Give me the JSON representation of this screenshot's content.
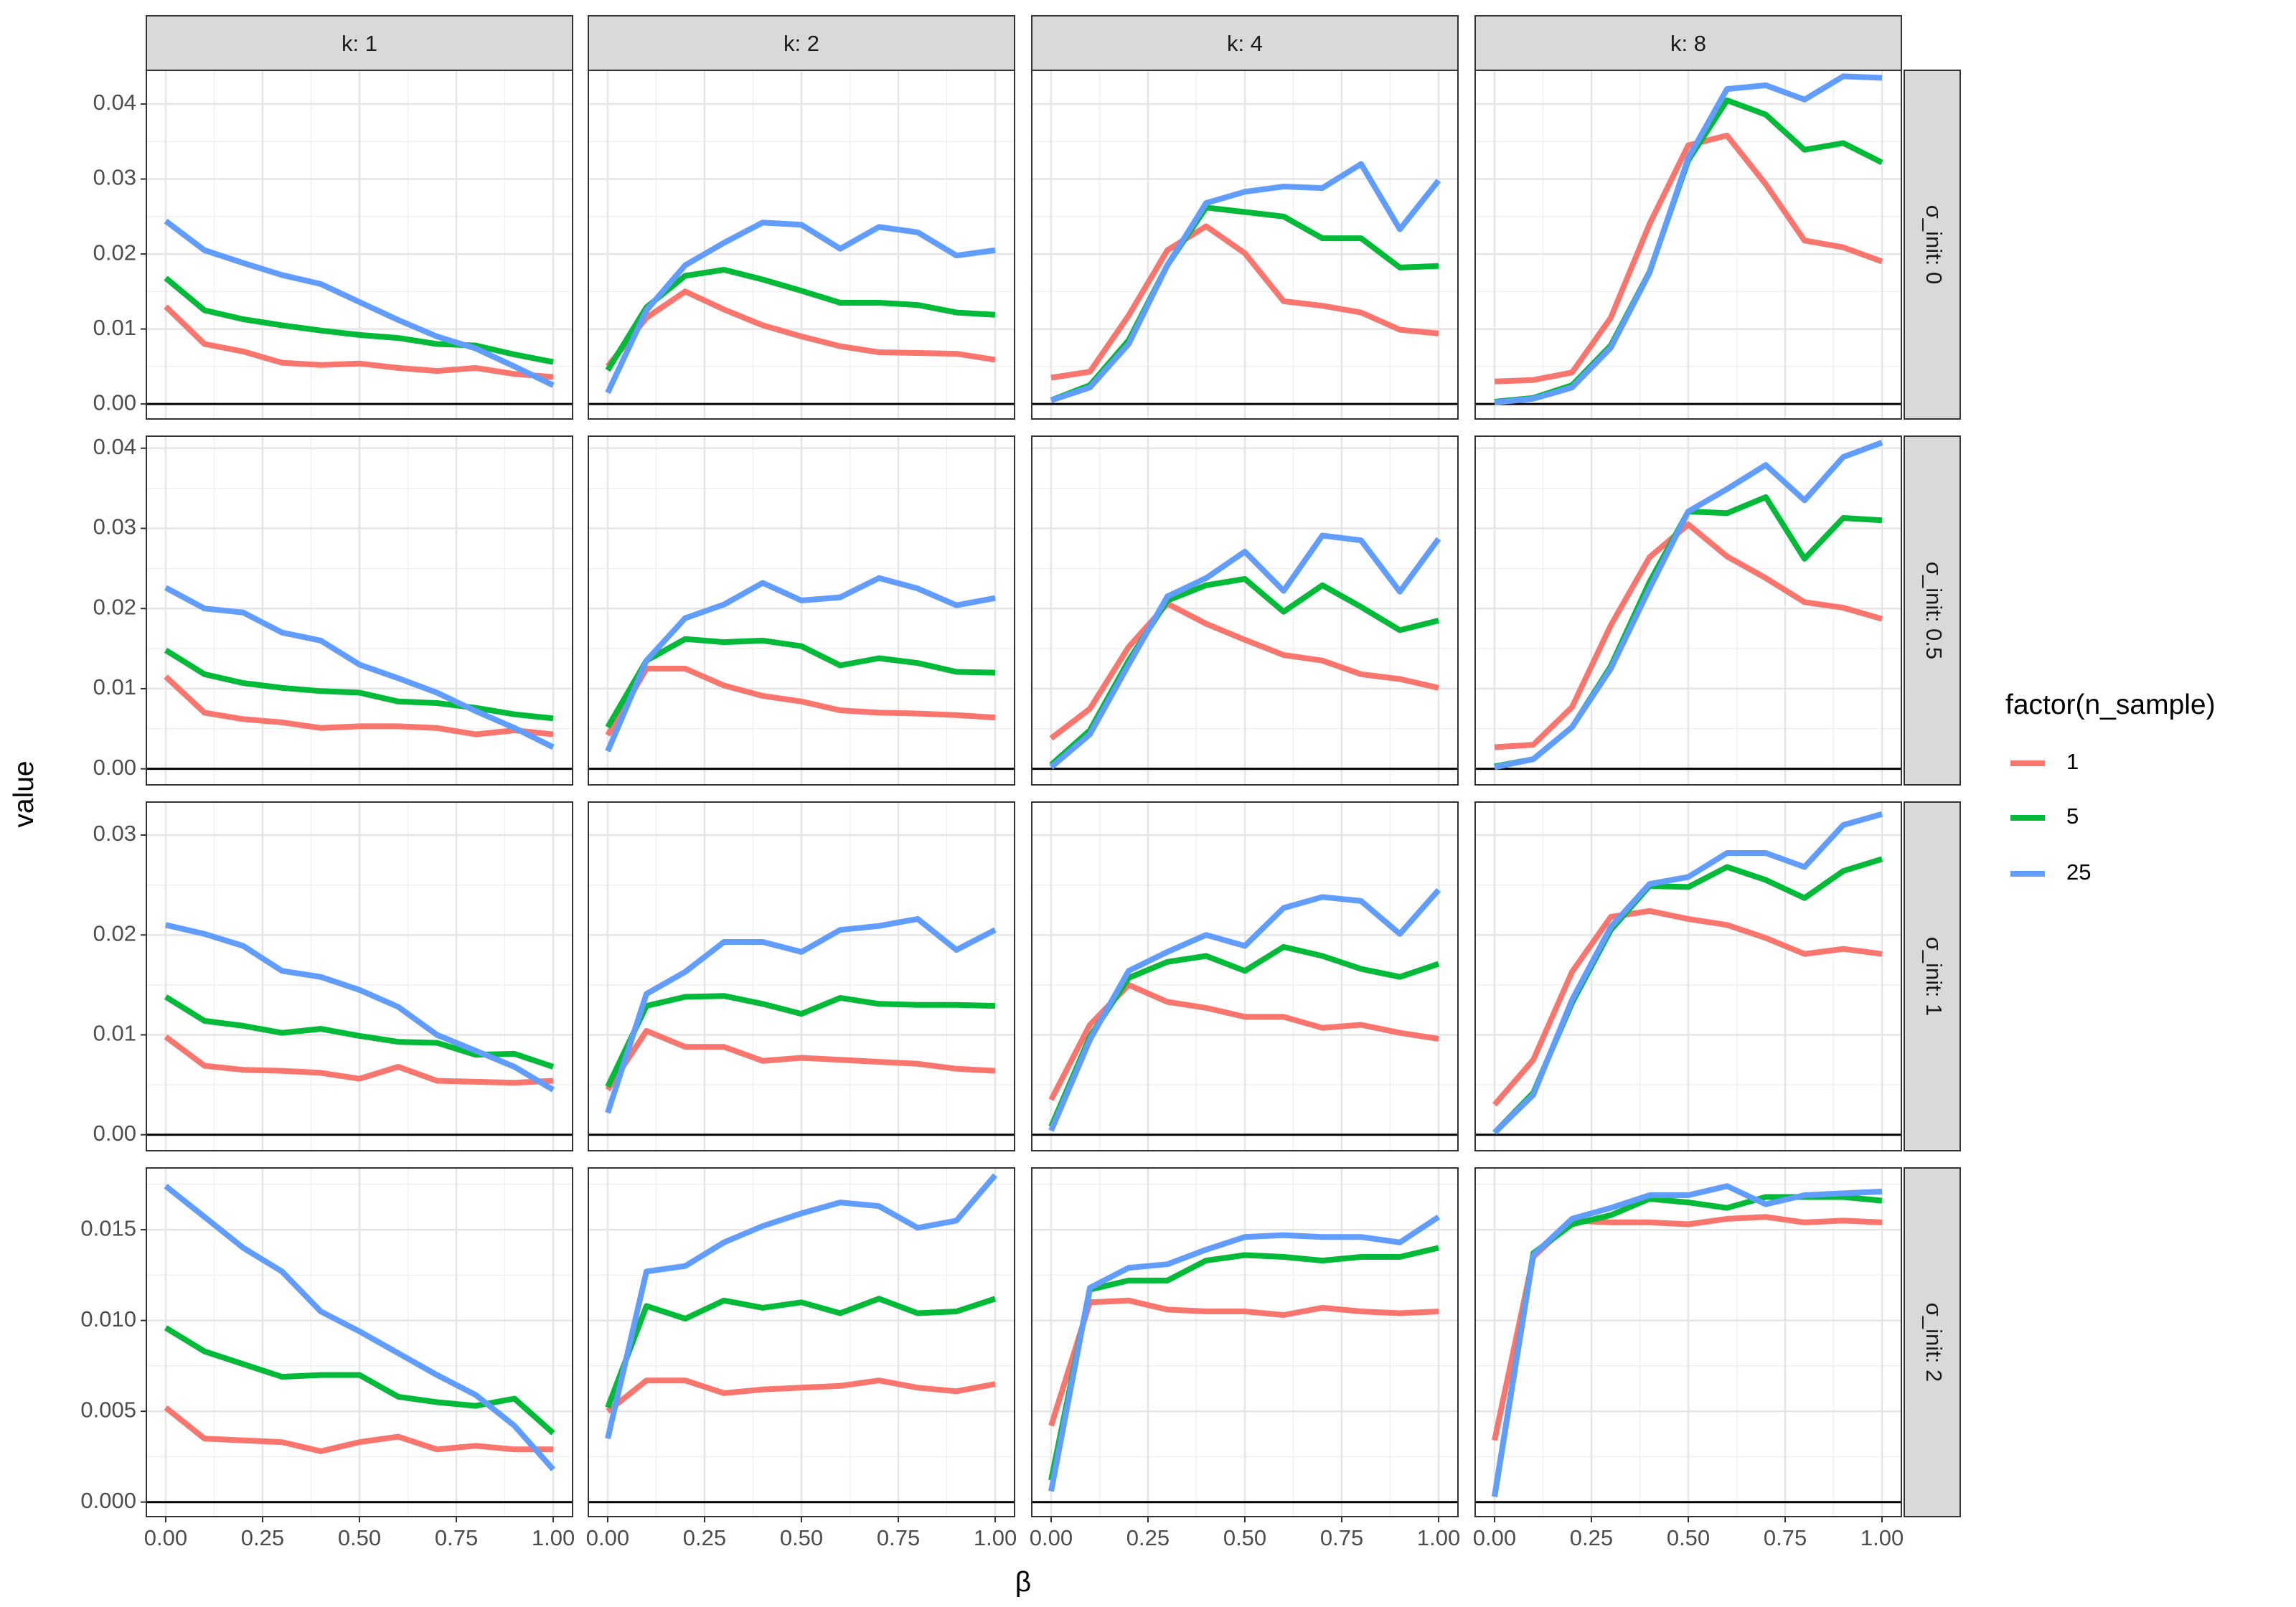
{
  "chart_data": {
    "type": "line",
    "xlabel": "β",
    "ylabel": "value",
    "facet_cols": [
      "k: 1",
      "k: 2",
      "k: 4",
      "k: 8"
    ],
    "facet_rows": [
      "σ_init: 0",
      "σ_init: 0.5",
      "σ_init: 1",
      "σ_init: 2"
    ],
    "x": [
      0,
      0.1,
      0.2,
      0.3,
      0.4,
      0.5,
      0.6,
      0.7,
      0.8,
      0.9,
      1.0
    ],
    "xlim": [
      0,
      1
    ],
    "x_ticks": [
      0,
      0.25,
      0.5,
      0.75,
      1.0
    ],
    "x_tick_labels": [
      "0.00",
      "0.25",
      "0.50",
      "0.75",
      "1.00"
    ],
    "row_axes": [
      {
        "ylim": [
          -0.002,
          0.0445
        ],
        "ticks": [
          0,
          0.01,
          0.02,
          0.03,
          0.04
        ],
        "tick_labels": [
          "0.00",
          "0.01",
          "0.02",
          "0.03",
          "0.04"
        ]
      },
      {
        "ylim": [
          -0.002,
          0.0415
        ],
        "ticks": [
          0,
          0.01,
          0.02,
          0.03,
          0.04
        ],
        "tick_labels": [
          "0.00",
          "0.01",
          "0.02",
          "0.03",
          "0.04"
        ]
      },
      {
        "ylim": [
          -0.0016,
          0.0333
        ],
        "ticks": [
          0,
          0.01,
          0.02,
          0.03
        ],
        "tick_labels": [
          "0.00",
          "0.01",
          "0.02",
          "0.03"
        ]
      },
      {
        "ylim": [
          -0.0008,
          0.0184
        ],
        "ticks": [
          0,
          0.005,
          0.01,
          0.015
        ],
        "tick_labels": [
          "0.000",
          "0.005",
          "0.010",
          "0.015"
        ]
      }
    ],
    "legend": {
      "title": "factor(n_sample)",
      "position": "right",
      "entries": [
        {
          "label": "1",
          "color": "#F8766D"
        },
        {
          "label": "5",
          "color": "#00BA38"
        },
        {
          "label": "25",
          "color": "#619CFF"
        }
      ]
    },
    "grid": true,
    "panels": [
      {
        "row": 0,
        "col": 0,
        "series": [
          {
            "name": "1",
            "values": [
              0.013,
              0.008,
              0.007,
              0.0055,
              0.0052,
              0.0054,
              0.0048,
              0.0044,
              0.0048,
              0.004,
              0.0036
            ]
          },
          {
            "name": "5",
            "values": [
              0.0168,
              0.0125,
              0.0113,
              0.0105,
              0.0098,
              0.0092,
              0.0088,
              0.008,
              0.0078,
              0.0066,
              0.0056
            ]
          },
          {
            "name": "25",
            "values": [
              0.0244,
              0.0205,
              0.0188,
              0.0172,
              0.016,
              0.0136,
              0.0112,
              0.009,
              0.0074,
              0.005,
              0.0025
            ]
          }
        ]
      },
      {
        "row": 0,
        "col": 1,
        "series": [
          {
            "name": "1",
            "values": [
              0.005,
              0.0115,
              0.015,
              0.0126,
              0.0105,
              0.009,
              0.0077,
              0.0069,
              0.0068,
              0.0067,
              0.0059
            ]
          },
          {
            "name": "5",
            "values": [
              0.0045,
              0.0129,
              0.0171,
              0.0179,
              0.0166,
              0.0151,
              0.0135,
              0.0135,
              0.0132,
              0.0122,
              0.0119
            ]
          },
          {
            "name": "25",
            "values": [
              0.0015,
              0.0125,
              0.0185,
              0.0215,
              0.0242,
              0.0239,
              0.0207,
              0.0236,
              0.0229,
              0.0198,
              0.0205
            ]
          }
        ]
      },
      {
        "row": 0,
        "col": 2,
        "series": [
          {
            "name": "1",
            "values": [
              0.0035,
              0.0043,
              0.0118,
              0.0205,
              0.0237,
              0.0201,
              0.0137,
              0.0131,
              0.0122,
              0.0099,
              0.0094
            ]
          },
          {
            "name": "5",
            "values": [
              0.0005,
              0.0025,
              0.0085,
              0.0185,
              0.0262,
              0.0256,
              0.025,
              0.0221,
              0.0221,
              0.0182,
              0.0184
            ]
          },
          {
            "name": "25",
            "values": [
              0.0005,
              0.0022,
              0.008,
              0.0185,
              0.0268,
              0.0283,
              0.029,
              0.0288,
              0.032,
              0.0233,
              0.0298
            ]
          }
        ]
      },
      {
        "row": 0,
        "col": 3,
        "series": [
          {
            "name": "1",
            "values": [
              0.003,
              0.0032,
              0.0042,
              0.0115,
              0.024,
              0.0345,
              0.0358,
              0.0293,
              0.0218,
              0.0209,
              0.019
            ]
          },
          {
            "name": "5",
            "values": [
              0.0003,
              0.0008,
              0.0025,
              0.0078,
              0.0176,
              0.0325,
              0.0405,
              0.0386,
              0.0339,
              0.0348,
              0.0322
            ]
          },
          {
            "name": "25",
            "values": [
              0.0002,
              0.0007,
              0.0022,
              0.0075,
              0.0175,
              0.0328,
              0.042,
              0.0425,
              0.0406,
              0.0437,
              0.0435
            ]
          }
        ]
      },
      {
        "row": 1,
        "col": 0,
        "series": [
          {
            "name": "1",
            "values": [
              0.0115,
              0.007,
              0.0062,
              0.0058,
              0.0051,
              0.0053,
              0.0053,
              0.0051,
              0.0043,
              0.0048,
              0.0043
            ]
          },
          {
            "name": "5",
            "values": [
              0.0148,
              0.0118,
              0.0107,
              0.0101,
              0.0097,
              0.0095,
              0.0084,
              0.0082,
              0.0076,
              0.0068,
              0.0063
            ]
          },
          {
            "name": "25",
            "values": [
              0.0226,
              0.02,
              0.0195,
              0.017,
              0.016,
              0.013,
              0.0113,
              0.0095,
              0.0072,
              0.0051,
              0.0027
            ]
          }
        ]
      },
      {
        "row": 1,
        "col": 1,
        "series": [
          {
            "name": "1",
            "values": [
              0.0042,
              0.0125,
              0.0125,
              0.0104,
              0.0091,
              0.0084,
              0.0073,
              0.007,
              0.0069,
              0.0067,
              0.0064
            ]
          },
          {
            "name": "5",
            "values": [
              0.0052,
              0.0135,
              0.0162,
              0.0158,
              0.016,
              0.0153,
              0.0129,
              0.0138,
              0.0132,
              0.0121,
              0.012
            ]
          },
          {
            "name": "25",
            "values": [
              0.0022,
              0.0135,
              0.0188,
              0.0205,
              0.0232,
              0.021,
              0.0214,
              0.0238,
              0.0225,
              0.0204,
              0.0213
            ]
          }
        ]
      },
      {
        "row": 1,
        "col": 2,
        "series": [
          {
            "name": "1",
            "values": [
              0.0038,
              0.0075,
              0.0152,
              0.0206,
              0.0181,
              0.0161,
              0.0142,
              0.0135,
              0.0118,
              0.0112,
              0.0101
            ]
          },
          {
            "name": "5",
            "values": [
              0.0005,
              0.0048,
              0.0135,
              0.021,
              0.0229,
              0.0237,
              0.0196,
              0.0229,
              0.0202,
              0.0173,
              0.0185
            ]
          },
          {
            "name": "25",
            "values": [
              0.0002,
              0.0043,
              0.013,
              0.0215,
              0.0238,
              0.0271,
              0.0222,
              0.0291,
              0.0285,
              0.0221,
              0.0287
            ]
          }
        ]
      },
      {
        "row": 1,
        "col": 3,
        "series": [
          {
            "name": "1",
            "values": [
              0.0027,
              0.003,
              0.0077,
              0.0179,
              0.0264,
              0.0305,
              0.0265,
              0.0238,
              0.0208,
              0.0201,
              0.0187
            ]
          },
          {
            "name": "5",
            "values": [
              0.0003,
              0.0012,
              0.0052,
              0.0128,
              0.0233,
              0.0321,
              0.0319,
              0.0339,
              0.0262,
              0.0313,
              0.031
            ]
          },
          {
            "name": "25",
            "values": [
              0.0002,
              0.0012,
              0.0052,
              0.0125,
              0.0225,
              0.0321,
              0.0349,
              0.0379,
              0.0335,
              0.0389,
              0.0407
            ]
          }
        ]
      },
      {
        "row": 2,
        "col": 0,
        "series": [
          {
            "name": "1",
            "values": [
              0.0098,
              0.0069,
              0.0065,
              0.0064,
              0.0062,
              0.0056,
              0.0068,
              0.0054,
              0.0053,
              0.0052,
              0.0054
            ]
          },
          {
            "name": "5",
            "values": [
              0.0138,
              0.0114,
              0.0109,
              0.0102,
              0.0106,
              0.0099,
              0.0093,
              0.0092,
              0.008,
              0.0081,
              0.0068
            ]
          },
          {
            "name": "25",
            "values": [
              0.021,
              0.0201,
              0.0189,
              0.0164,
              0.0158,
              0.0145,
              0.0128,
              0.01,
              0.0084,
              0.0068,
              0.0045
            ]
          }
        ]
      },
      {
        "row": 2,
        "col": 1,
        "series": [
          {
            "name": "1",
            "values": [
              0.0045,
              0.0104,
              0.0088,
              0.0088,
              0.0074,
              0.0077,
              0.0075,
              0.0073,
              0.0071,
              0.0066,
              0.0064
            ]
          },
          {
            "name": "5",
            "values": [
              0.0048,
              0.0129,
              0.0138,
              0.0139,
              0.0131,
              0.0121,
              0.0137,
              0.0131,
              0.013,
              0.013,
              0.0129
            ]
          },
          {
            "name": "25",
            "values": [
              0.0022,
              0.0141,
              0.0163,
              0.0193,
              0.0193,
              0.0183,
              0.0205,
              0.0209,
              0.0216,
              0.0185,
              0.0205
            ]
          }
        ]
      },
      {
        "row": 2,
        "col": 2,
        "series": [
          {
            "name": "1",
            "values": [
              0.0035,
              0.011,
              0.015,
              0.0133,
              0.0127,
              0.0118,
              0.0118,
              0.0107,
              0.011,
              0.0102,
              0.0096
            ]
          },
          {
            "name": "5",
            "values": [
              0.0008,
              0.0098,
              0.0157,
              0.0173,
              0.0179,
              0.0164,
              0.0188,
              0.0179,
              0.0166,
              0.0158,
              0.0171
            ]
          },
          {
            "name": "25",
            "values": [
              0.0004,
              0.0095,
              0.0164,
              0.0183,
              0.02,
              0.0189,
              0.0227,
              0.0238,
              0.0234,
              0.0201,
              0.0245
            ]
          }
        ]
      },
      {
        "row": 2,
        "col": 3,
        "series": [
          {
            "name": "1",
            "values": [
              0.003,
              0.0075,
              0.0163,
              0.0218,
              0.0224,
              0.0216,
              0.021,
              0.0197,
              0.0181,
              0.0186,
              0.0181
            ]
          },
          {
            "name": "5",
            "values": [
              0.0002,
              0.0042,
              0.0132,
              0.0205,
              0.0249,
              0.0248,
              0.0268,
              0.0255,
              0.0237,
              0.0264,
              0.0276
            ]
          },
          {
            "name": "25",
            "values": [
              0.0002,
              0.004,
              0.0135,
              0.0208,
              0.0251,
              0.0258,
              0.0282,
              0.0282,
              0.0268,
              0.031,
              0.0321
            ]
          }
        ]
      },
      {
        "row": 3,
        "col": 0,
        "series": [
          {
            "name": "1",
            "values": [
              0.0052,
              0.0035,
              0.0034,
              0.0033,
              0.0028,
              0.0033,
              0.0036,
              0.0029,
              0.0031,
              0.0029,
              0.0029
            ]
          },
          {
            "name": "5",
            "values": [
              0.0096,
              0.0083,
              0.0076,
              0.0069,
              0.007,
              0.007,
              0.0058,
              0.0055,
              0.0053,
              0.0057,
              0.0038
            ]
          },
          {
            "name": "25",
            "values": [
              0.0174,
              0.0157,
              0.014,
              0.0127,
              0.0105,
              0.0094,
              0.0082,
              0.007,
              0.0059,
              0.0042,
              0.0018
            ]
          }
        ]
      },
      {
        "row": 3,
        "col": 1,
        "series": [
          {
            "name": "1",
            "values": [
              0.005,
              0.0067,
              0.0067,
              0.006,
              0.0062,
              0.0063,
              0.0064,
              0.0067,
              0.0063,
              0.0061,
              0.0065
            ]
          },
          {
            "name": "5",
            "values": [
              0.0052,
              0.0108,
              0.0101,
              0.0111,
              0.0107,
              0.011,
              0.0104,
              0.0112,
              0.0104,
              0.0105,
              0.0112
            ]
          },
          {
            "name": "25",
            "values": [
              0.0035,
              0.0127,
              0.013,
              0.0143,
              0.0152,
              0.0159,
              0.0165,
              0.0163,
              0.0151,
              0.0155,
              0.018
            ]
          }
        ]
      },
      {
        "row": 3,
        "col": 2,
        "series": [
          {
            "name": "1",
            "values": [
              0.0042,
              0.011,
              0.0111,
              0.0106,
              0.0105,
              0.0105,
              0.0103,
              0.0107,
              0.0105,
              0.0104,
              0.0105
            ]
          },
          {
            "name": "5",
            "values": [
              0.0012,
              0.0117,
              0.0122,
              0.0122,
              0.0133,
              0.0136,
              0.0135,
              0.0133,
              0.0135,
              0.0135,
              0.014
            ]
          },
          {
            "name": "25",
            "values": [
              0.0006,
              0.0118,
              0.0129,
              0.0131,
              0.0139,
              0.0146,
              0.0147,
              0.0146,
              0.0146,
              0.0143,
              0.0157
            ]
          }
        ]
      },
      {
        "row": 3,
        "col": 3,
        "series": [
          {
            "name": "1",
            "values": [
              0.0034,
              0.0135,
              0.0155,
              0.0154,
              0.0154,
              0.0153,
              0.0156,
              0.0157,
              0.0154,
              0.0155,
              0.0154
            ]
          },
          {
            "name": "5",
            "values": [
              0.0003,
              0.0137,
              0.0153,
              0.0158,
              0.0167,
              0.0165,
              0.0162,
              0.0168,
              0.0168,
              0.0168,
              0.0166
            ]
          },
          {
            "name": "25",
            "values": [
              0.0003,
              0.0136,
              0.0156,
              0.0162,
              0.0169,
              0.0169,
              0.0174,
              0.0164,
              0.0169,
              0.017,
              0.0171
            ]
          }
        ]
      }
    ]
  }
}
